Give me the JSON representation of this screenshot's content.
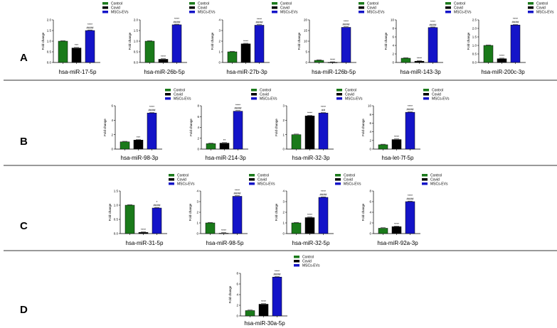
{
  "chart_data": {
    "type": "bar",
    "legend": [
      "Control",
      "Covid",
      "MSCs-EVs"
    ],
    "colors": [
      "#1a7a1a",
      "#000000",
      "#1414c8"
    ],
    "ylabel": "Fold change",
    "rows": [
      {
        "letter": "A",
        "panels": [
          {
            "title": "hsa-miR-17-5p",
            "values": [
              1,
              0.68,
              1.5
            ],
            "ylim": [
              0,
              2
            ],
            "ticks": [
              "0.0",
              "0.5",
              "1.0",
              "1.5",
              "2.0"
            ],
            "sig": [
              "",
              "***",
              "****"
            ],
            "sig2": [
              "",
              "",
              "####"
            ]
          },
          {
            "title": "hsa-miR-26b-5p",
            "values": [
              1,
              0.15,
              1.77
            ],
            "ylim": [
              0,
              2
            ],
            "ticks": [
              "0.0",
              "0.5",
              "1.0",
              "1.5",
              "2.0"
            ],
            "sig": [
              "",
              "****",
              "****"
            ],
            "sig2": [
              "",
              "",
              "####"
            ]
          },
          {
            "title": "hsa-miR-27b-3p",
            "values": [
              1,
              1.75,
              3.5
            ],
            "ylim": [
              0,
              4
            ],
            "ticks": [
              "0",
              "1",
              "2",
              "3",
              "4"
            ],
            "sig": [
              "",
              "****",
              "****"
            ],
            "sig2": [
              "",
              "",
              "####"
            ]
          },
          {
            "title": "hsa-miR-126b-5p",
            "values": [
              1,
              0.05,
              16.5
            ],
            "ylim": [
              0,
              20
            ],
            "ticks": [
              "0",
              "5",
              "10",
              "15",
              "20"
            ],
            "sig": [
              "",
              "****",
              "****"
            ],
            "sig2": [
              "",
              "",
              "####"
            ]
          },
          {
            "title": "hsa-miR-143-3p",
            "values": [
              1,
              0.3,
              8.2
            ],
            "ylim": [
              0,
              10
            ],
            "ticks": [
              "0",
              "2",
              "4",
              "6",
              "8",
              "10"
            ],
            "sig": [
              "",
              "****",
              "****"
            ],
            "sig2": [
              "",
              "",
              "####"
            ]
          },
          {
            "title": "hsa-miR-200c-3p",
            "values": [
              1,
              0.22,
              2.2
            ],
            "ylim": [
              0,
              2.5
            ],
            "ticks": [
              "0.0",
              "0.5",
              "1.0",
              "1.5",
              "2.0",
              "2.5"
            ],
            "sig": [
              "",
              "****",
              "****"
            ],
            "sig2": [
              "",
              "",
              "####"
            ]
          }
        ]
      },
      {
        "letter": "B",
        "panels": [
          {
            "title": "hsa-miR-98-3p",
            "values": [
              1,
              1.25,
              5
            ],
            "ylim": [
              0,
              6
            ],
            "ticks": [
              "0",
              "2",
              "4",
              "6"
            ],
            "sig": [
              "",
              "***",
              "****"
            ],
            "sig2": [
              "",
              "",
              "####"
            ]
          },
          {
            "title": "hsa-miR-214-3p",
            "values": [
              1,
              1.1,
              7
            ],
            "ylim": [
              0,
              8
            ],
            "ticks": [
              "0",
              "2",
              "4",
              "6",
              "8"
            ],
            "sig": [
              "",
              "**",
              "****"
            ],
            "sig2": [
              "",
              "",
              "####"
            ]
          },
          {
            "title": "hsa-miR-32-3p",
            "values": [
              1,
              2.3,
              2.5
            ],
            "ylim": [
              0,
              3
            ],
            "ticks": [
              "0",
              "1",
              "2",
              "3"
            ],
            "sig": [
              "",
              "****",
              "****"
            ],
            "sig2": [
              "",
              "",
              "##"
            ]
          },
          {
            "title": "hsa-let-7f-5p",
            "values": [
              1,
              2.2,
              8.5
            ],
            "ylim": [
              0,
              10
            ],
            "ticks": [
              "0",
              "2",
              "4",
              "6",
              "8",
              "10"
            ],
            "sig": [
              "",
              "****",
              "****"
            ],
            "sig2": [
              "",
              "",
              "####"
            ]
          }
        ]
      },
      {
        "letter": "C",
        "panels": [
          {
            "title": "hsa-miR-31-5p",
            "values": [
              1,
              0.04,
              0.9
            ],
            "ylim": [
              0,
              1.5
            ],
            "ticks": [
              "0.0",
              "0.5",
              "1.0",
              "1.5"
            ],
            "sig": [
              "",
              "****",
              "*"
            ],
            "sig2": [
              "",
              "",
              "####"
            ]
          },
          {
            "title": "hsa-miR-98-5p",
            "values": [
              1,
              0.03,
              3.5
            ],
            "ylim": [
              0,
              4
            ],
            "ticks": [
              "0",
              "1",
              "2",
              "3",
              "4"
            ],
            "sig": [
              "",
              "****",
              "****"
            ],
            "sig2": [
              "",
              "",
              "####"
            ]
          },
          {
            "title": "hsa-miR-32-5p",
            "values": [
              1,
              1.5,
              3.4
            ],
            "ylim": [
              0,
              4
            ],
            "ticks": [
              "0",
              "1",
              "2",
              "3",
              "4"
            ],
            "sig": [
              "",
              "****",
              "****"
            ],
            "sig2": [
              "",
              "",
              "####"
            ]
          },
          {
            "title": "hsa-miR-92a-3p",
            "values": [
              1,
              1.3,
              6
            ],
            "ylim": [
              0,
              8
            ],
            "ticks": [
              "0",
              "2",
              "4",
              "6",
              "8"
            ],
            "sig": [
              "",
              "****",
              "****"
            ],
            "sig2": [
              "",
              "",
              "####"
            ]
          }
        ]
      },
      {
        "letter": "D",
        "panels": [
          {
            "title": "hsa-miR-30a-5p",
            "values": [
              1,
              2.2,
              7.3
            ],
            "ylim": [
              0,
              8
            ],
            "ticks": [
              "0",
              "2",
              "4",
              "6",
              "8"
            ],
            "sig": [
              "",
              "****",
              "****"
            ],
            "sig2": [
              "",
              "",
              "####"
            ]
          }
        ]
      }
    ]
  }
}
